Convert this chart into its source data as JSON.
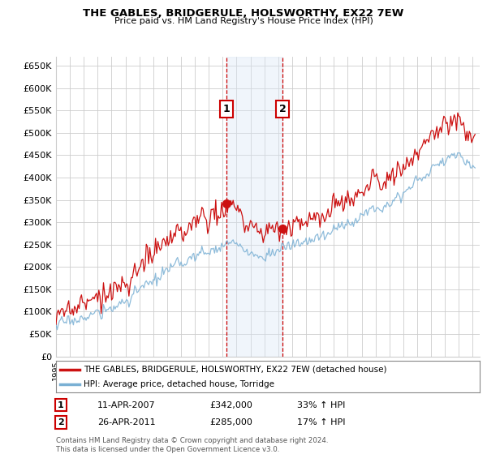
{
  "title": "THE GABLES, BRIDGERULE, HOLSWORTHY, EX22 7EW",
  "subtitle": "Price paid vs. HM Land Registry's House Price Index (HPI)",
  "yticks": [
    0,
    50000,
    100000,
    150000,
    200000,
    250000,
    300000,
    350000,
    400000,
    450000,
    500000,
    550000,
    600000,
    650000
  ],
  "ylim": [
    0,
    670000
  ],
  "xlim_start": 1995.0,
  "xlim_end": 2025.5,
  "sale1_x": 2007.27,
  "sale1_y": 342000,
  "sale2_x": 2011.32,
  "sale2_y": 285000,
  "shade_color": "#dae8f5",
  "line_color_hpi": "#7ab0d4",
  "line_color_price": "#cc1111",
  "grid_color": "#cccccc",
  "legend_label_price": "THE GABLES, BRIDGERULE, HOLSWORTHY, EX22 7EW (detached house)",
  "legend_label_hpi": "HPI: Average price, detached house, Torridge",
  "annot1_label": "1",
  "annot1_date": "11-APR-2007",
  "annot1_price": "£342,000",
  "annot1_hpi": "33% ↑ HPI",
  "annot2_label": "2",
  "annot2_date": "26-APR-2011",
  "annot2_price": "£285,000",
  "annot2_hpi": "17% ↑ HPI",
  "footer": "Contains HM Land Registry data © Crown copyright and database right 2024.\nThis data is licensed under the Open Government Licence v3.0.",
  "background_color": "#ffffff"
}
